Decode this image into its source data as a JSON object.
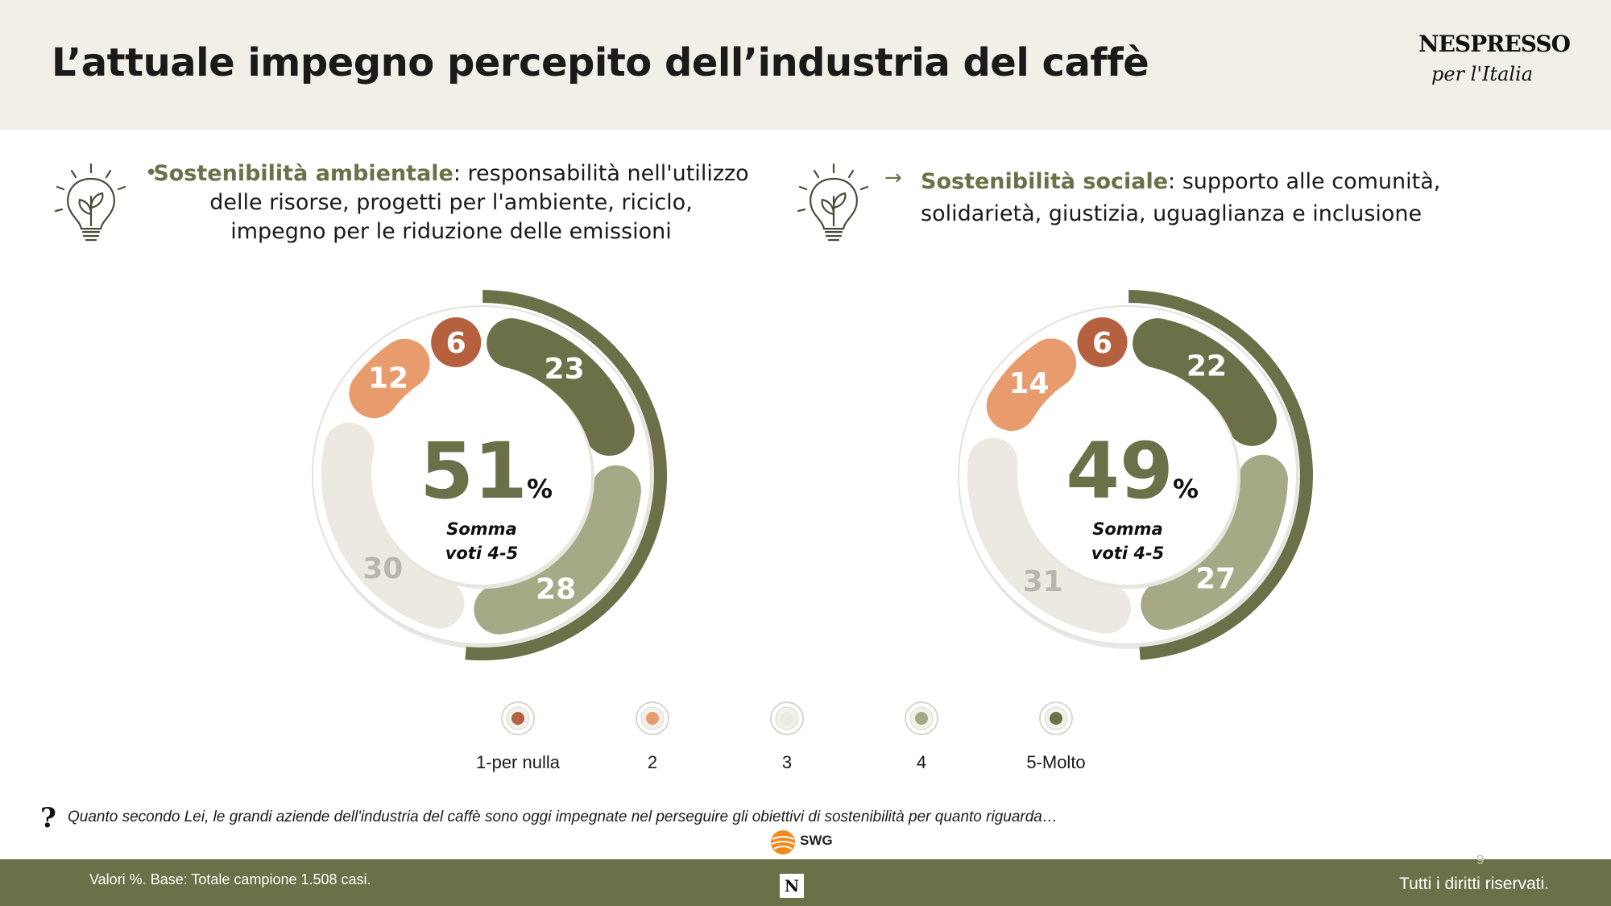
{
  "header": {
    "title": "L’attuale impegno percepito dell’industria del caffè",
    "logo_word": "NESPRESSO",
    "logo_tagline": "per l'Italia"
  },
  "sections": [
    {
      "marker": "•",
      "keyword": "Sostenibilità ambientale",
      "lines": [
        ": responsabilità nell'utilizzo",
        "delle risorse, progetti per l'ambiente, riciclo,",
        "impegno per le riduzione delle emissioni"
      ]
    },
    {
      "marker": "→",
      "keyword": "Sostenibilità sociale",
      "lines": [
        ": supporto alle comunità,",
        "solidarietà, giustizia, uguaglianza e inclusione"
      ]
    }
  ],
  "colors": {
    "v1": "#b5603f",
    "v2": "#e89c6d",
    "v3": "#ebe9e1",
    "v4": "#a5a985",
    "v5": "#6b7048",
    "accent": "#6b7048",
    "big_number": "#6b7048"
  },
  "chart_data": [
    {
      "type": "donut",
      "slices": [
        {
          "category": "1-per nulla",
          "value": 6
        },
        {
          "category": "2",
          "value": 12
        },
        {
          "category": "3",
          "value": 30
        },
        {
          "category": "4",
          "value": 28
        },
        {
          "category": "5-Molto",
          "value": 23
        }
      ],
      "center_value": "51",
      "center_unit": "%",
      "center_label_lines": [
        "Somma",
        "voti 4-5"
      ]
    },
    {
      "type": "donut",
      "slices": [
        {
          "category": "1-per nulla",
          "value": 6
        },
        {
          "category": "2",
          "value": 14
        },
        {
          "category": "3",
          "value": 31
        },
        {
          "category": "4",
          "value": 27
        },
        {
          "category": "5-Molto",
          "value": 22
        }
      ],
      "center_value": "49",
      "center_unit": "%",
      "center_label_lines": [
        "Somma",
        "voti 4-5"
      ]
    }
  ],
  "legend": [
    {
      "label": "1-per nulla",
      "color": "#b5603f"
    },
    {
      "label": "2",
      "color": "#e89c6d"
    },
    {
      "label": "3",
      "color": "#ebe9e1"
    },
    {
      "label": "4",
      "color": "#a5a985"
    },
    {
      "label": "5-Molto",
      "color": "#6b7048"
    }
  ],
  "question": {
    "mark": "?",
    "text": "Quanto secondo Lei, le grandi aziende dell'industria del caffè sono oggi impegnate nel perseguire gli obiettivi di sostenibilità per quanto riguarda…"
  },
  "source_logo": "SWG",
  "footer": {
    "note": "Valori %. Base: Totale campione 1.508 casi.",
    "rights": "Tutti i diritti riservati.",
    "page_number": "9",
    "n_logo": "N"
  }
}
